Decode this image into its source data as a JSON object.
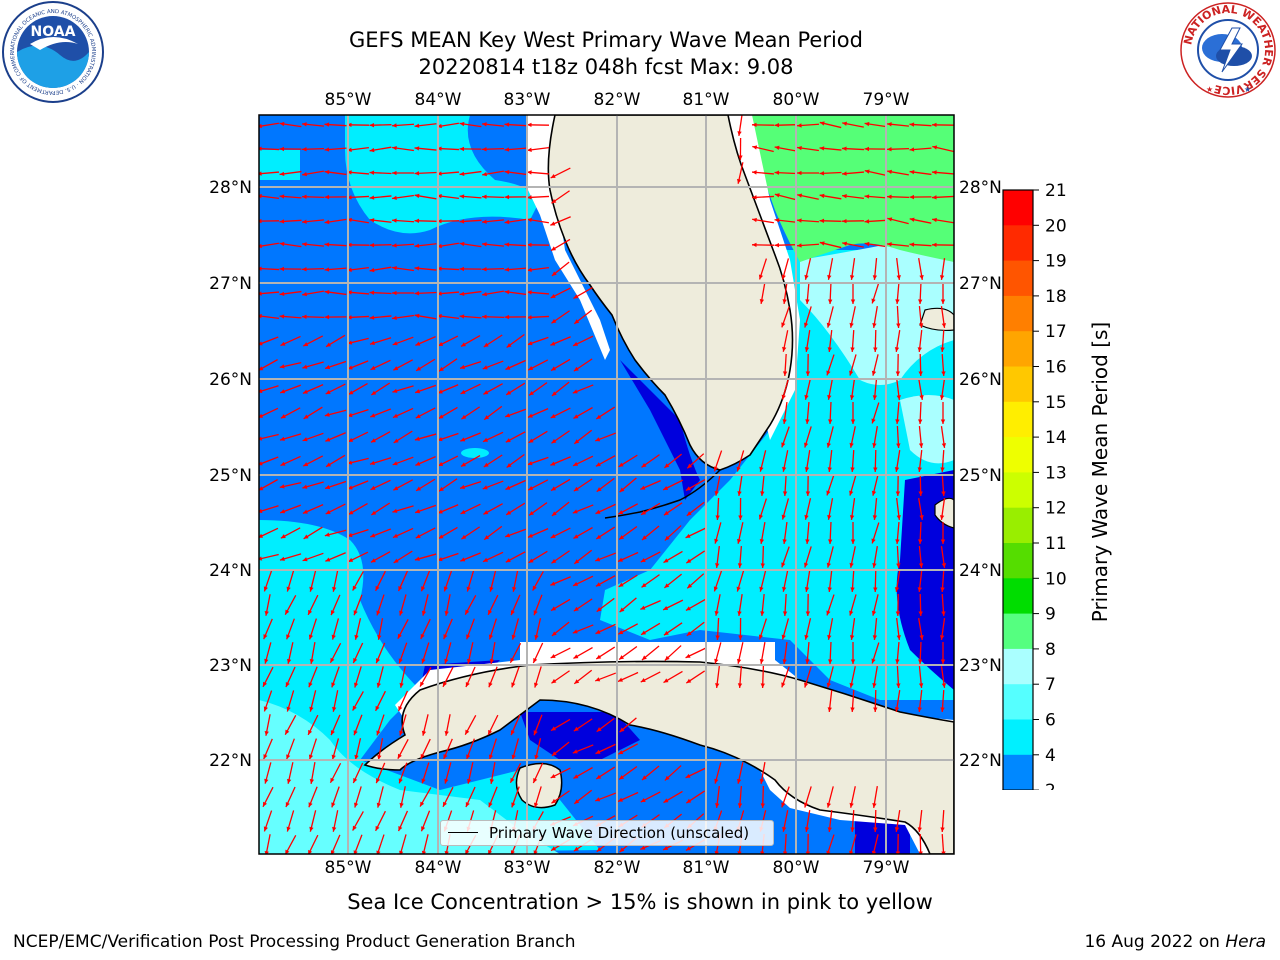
{
  "title_line1": "GEFS MEAN Key West Primary Wave Mean Period",
  "title_line2": "20220814 t18z 048h fcst   Max: 9.08",
  "lon_ticks": [
    "85°W",
    "84°W",
    "83°W",
    "82°W",
    "81°W",
    "80°W",
    "79°W"
  ],
  "lat_ticks": [
    "28°N",
    "27°N",
    "26°N",
    "25°N",
    "24°N",
    "23°N",
    "22°N"
  ],
  "colorbar": {
    "label": "Primary Wave Mean Period [s]",
    "ticks": [
      "21",
      "20",
      "19",
      "18",
      "17",
      "16",
      "15",
      "14",
      "13",
      "12",
      "11",
      "10",
      "9",
      "8",
      "7",
      "6",
      "4",
      "2"
    ],
    "colors": [
      "#ff0000",
      "#ff2a00",
      "#ff5500",
      "#ff7f00",
      "#ffa500",
      "#ffc800",
      "#ffee00",
      "#eeff00",
      "#ccff00",
      "#99ee00",
      "#55dd00",
      "#00dd00",
      "#55ff80",
      "#aaffff",
      "#55ffff",
      "#00f0ff",
      "#0088ff",
      "#0044ee"
    ],
    "extend_color": "#0000dd"
  },
  "legend_text": "Primary Wave Direction (unscaled)",
  "caption": "Sea Ice Concentration > 15% is shown in pink to yellow",
  "footer_left": "NCEP/EMC/Verification Post Processing Product Generation Branch",
  "footer_right_date": "16 Aug 2022 on ",
  "footer_right_host": "Hera",
  "logo_noaa_text": "NOAA",
  "logo_noaa_ring": "NATIONAL OCEANIC AND ATMOSPHERIC ADMINISTRATION · U.S. DEPARTMENT OF COMMERCE",
  "logo_nws_ring": "NATIONAL WEATHER SERVICE",
  "colors": {
    "land": "#eeecdc",
    "deep_blue": "#0000dd",
    "blue": "#0077ff",
    "cyan": "#00eeff",
    "light_cyan": "#66ffff",
    "pale_cyan": "#aaffff",
    "green": "#55ff77",
    "arrow": "#ff0000",
    "grid": "#b4b4b4"
  }
}
